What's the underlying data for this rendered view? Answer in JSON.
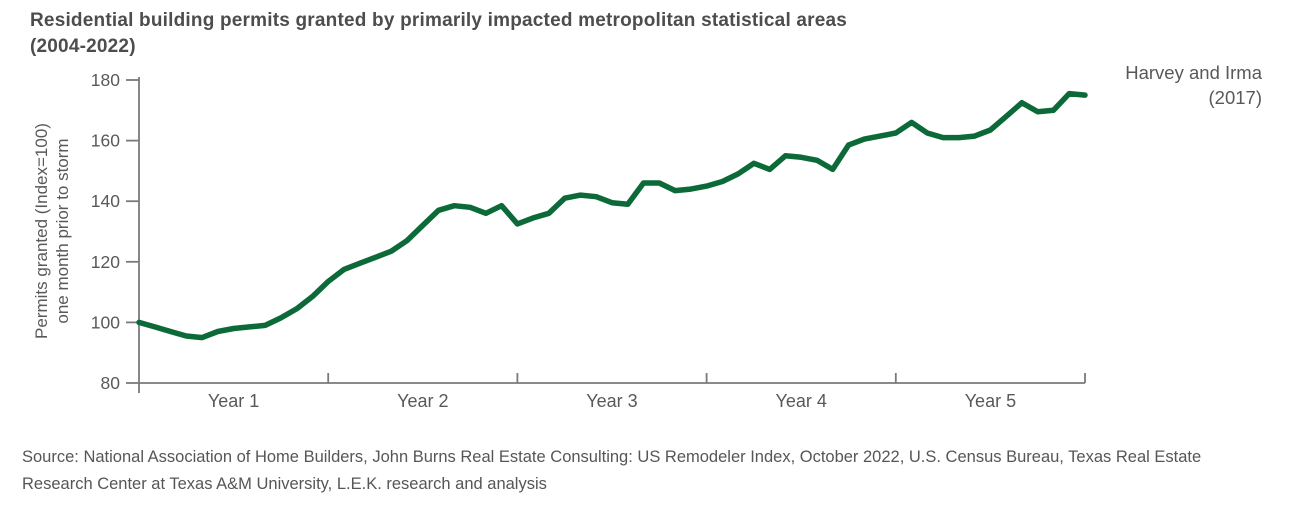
{
  "title": {
    "line1": "Residential building permits granted by primarily impacted metropolitan statistical areas",
    "line2": "(2004-2022)"
  },
  "annotation": {
    "line1": "Harvey and Irma",
    "line2": "(2017)"
  },
  "source": "Source: National Association of Home Builders, John Burns Real Estate Consulting: US Remodeler Index, October 2022, U.S. Census Bureau, Texas Real Estate Research Center at Texas A&M University, L.E.K. research and analysis",
  "chart_data": {
    "type": "line",
    "title": "Residential building permits granted by primarily impacted metropolitan statistical areas (2004-2022)",
    "ylabel_line1": "Permits granted (Index=100)",
    "ylabel_line2": "one month prior to storm",
    "x_axis": {
      "labels": [
        "Year 1",
        "Year 2",
        "Year 3",
        "Year 4",
        "Year 5"
      ],
      "unit": "months since one month prior to storm",
      "n_points": 61
    },
    "y_axis": {
      "ticks": [
        80,
        100,
        120,
        140,
        160,
        180
      ],
      "range": [
        80,
        180
      ],
      "grid": false
    },
    "legend": "none",
    "annotation_text": "Harvey and Irma (2017)",
    "series": [
      {
        "name": "Permits granted (Index=100)",
        "color": "#0c6a39",
        "values": [
          100,
          98.5,
          97,
          95.5,
          95,
          97,
          98,
          98.5,
          99,
          101.5,
          104.5,
          108.5,
          113.5,
          117.5,
          119.5,
          121.5,
          123.5,
          127,
          132,
          137,
          138.5,
          138,
          136,
          138.5,
          132.5,
          134.5,
          136,
          141,
          142,
          141.5,
          139.5,
          139,
          146,
          146,
          143.5,
          144,
          145,
          146.5,
          149,
          152.5,
          150.5,
          155,
          154.5,
          153.5,
          150.5,
          158.5,
          160.5,
          161.5,
          162.5,
          166,
          162.5,
          161,
          161,
          161.5,
          163.5,
          168,
          172.5,
          169.5,
          170,
          175.5,
          175
        ]
      }
    ]
  },
  "colors": {
    "line_green": "#0c6a39",
    "axis_gray": "#7a7a7a",
    "text_gray": "#58595b"
  }
}
